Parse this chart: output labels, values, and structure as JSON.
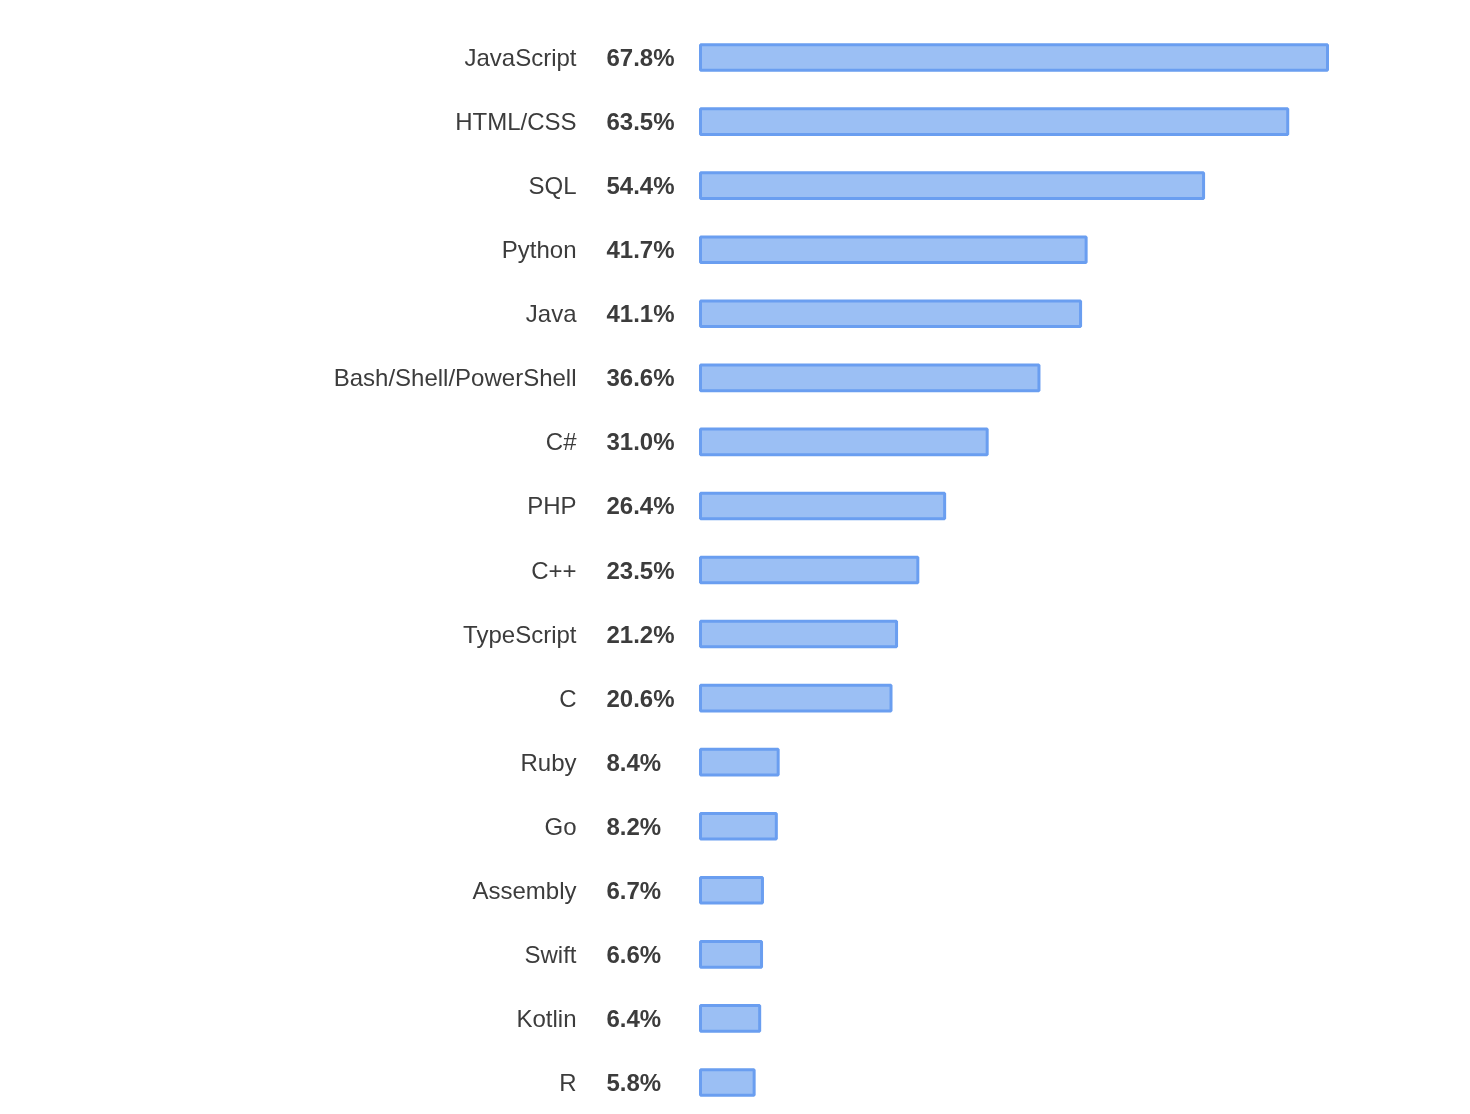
{
  "chart_data": {
    "type": "bar",
    "orientation": "horizontal",
    "categories": [
      "JavaScript",
      "HTML/CSS",
      "SQL",
      "Python",
      "Java",
      "Bash/Shell/PowerShell",
      "C#",
      "PHP",
      "C++",
      "TypeScript",
      "C",
      "Ruby",
      "Go",
      "Assembly",
      "Swift",
      "Kotlin",
      "R"
    ],
    "values": [
      67.8,
      63.5,
      54.4,
      41.7,
      41.1,
      36.6,
      31.0,
      26.4,
      23.5,
      21.2,
      20.6,
      8.4,
      8.2,
      6.7,
      6.6,
      6.4,
      5.8
    ],
    "value_labels": [
      "67.8%",
      "63.5%",
      "54.4%",
      "41.7%",
      "41.1%",
      "36.6%",
      "31.0%",
      "26.4%",
      "23.5%",
      "21.2%",
      "20.6%",
      "8.4%",
      "8.2%",
      "6.7%",
      "6.6%",
      "6.4%",
      "5.8%"
    ],
    "color": "#9bbff4"
  }
}
